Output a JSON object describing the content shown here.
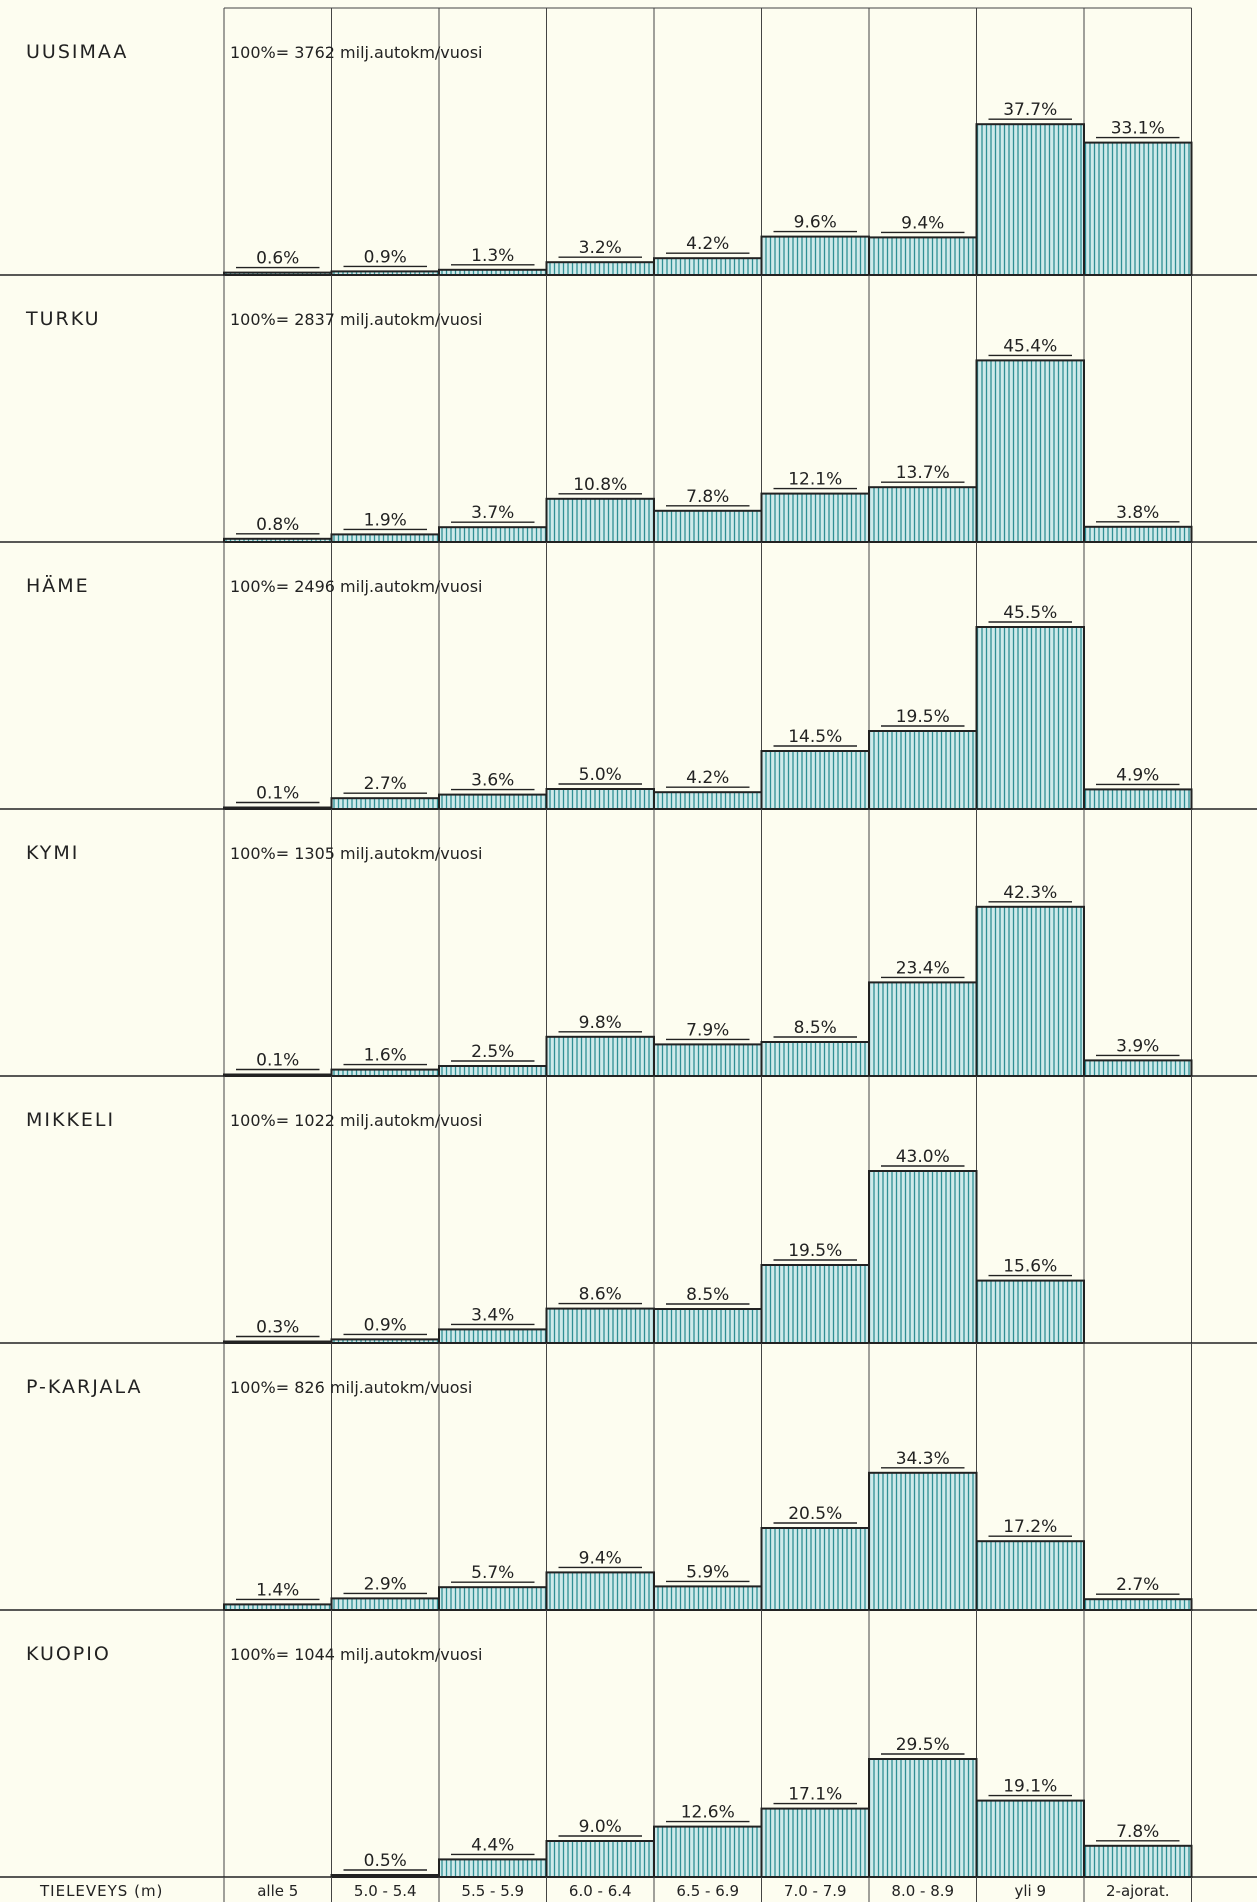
{
  "chart_data": {
    "type": "bar",
    "xlabel": "TIELEVEYS (m)",
    "categories": [
      "alle 5",
      "5.0 - 5.4",
      "5.5 - 5.9",
      "6.0 - 6.4",
      "6.5 - 6.9",
      "7.0 - 7.9",
      "8.0 - 8.9",
      "yli 9",
      "2-ajorat."
    ],
    "unit": "%",
    "ylim": [
      0,
      50
    ],
    "grid": true,
    "bar_pattern": "vertical-hatch",
    "colors": {
      "bar_fill": "#cfeaea",
      "hatch": "#2f8f94",
      "outline": "#222222",
      "background": "#fdfdf0"
    },
    "panels": [
      {
        "region": "UUSIMAA",
        "total_label": "100%= 3762 milj.autokm/vuosi",
        "values": [
          0.6,
          0.9,
          1.3,
          3.2,
          4.2,
          9.6,
          9.4,
          37.7,
          33.1
        ]
      },
      {
        "region": "TURKU",
        "total_label": "100%= 2837 milj.autokm/vuosi",
        "values": [
          0.8,
          1.9,
          3.7,
          10.8,
          7.8,
          12.1,
          13.7,
          45.4,
          3.8
        ]
      },
      {
        "region": "HÄME",
        "total_label": "100%= 2496 milj.autokm/vuosi",
        "values": [
          0.1,
          2.7,
          3.6,
          5.0,
          4.2,
          14.5,
          19.5,
          45.5,
          4.9
        ]
      },
      {
        "region": "KYMI",
        "total_label": "100%= 1305 milj.autokm/vuosi",
        "values": [
          0.1,
          1.6,
          2.5,
          9.8,
          7.9,
          8.5,
          23.4,
          42.3,
          3.9
        ]
      },
      {
        "region": "MIKKELI",
        "total_label": "100%= 1022 milj.autokm/vuosi",
        "values": [
          0.3,
          0.9,
          3.4,
          8.6,
          8.5,
          19.5,
          43.0,
          15.6,
          null
        ]
      },
      {
        "region": "P-KARJALA",
        "total_label": "100%= 826 milj.autokm/vuosi",
        "values": [
          1.4,
          2.9,
          5.7,
          9.4,
          5.9,
          20.5,
          34.3,
          17.2,
          2.7
        ]
      },
      {
        "region": "KUOPIO",
        "total_label": "100%= 1044 milj.autokm/vuosi",
        "values": [
          null,
          0.5,
          4.4,
          9.0,
          12.6,
          17.1,
          29.5,
          19.1,
          7.8
        ]
      }
    ]
  }
}
